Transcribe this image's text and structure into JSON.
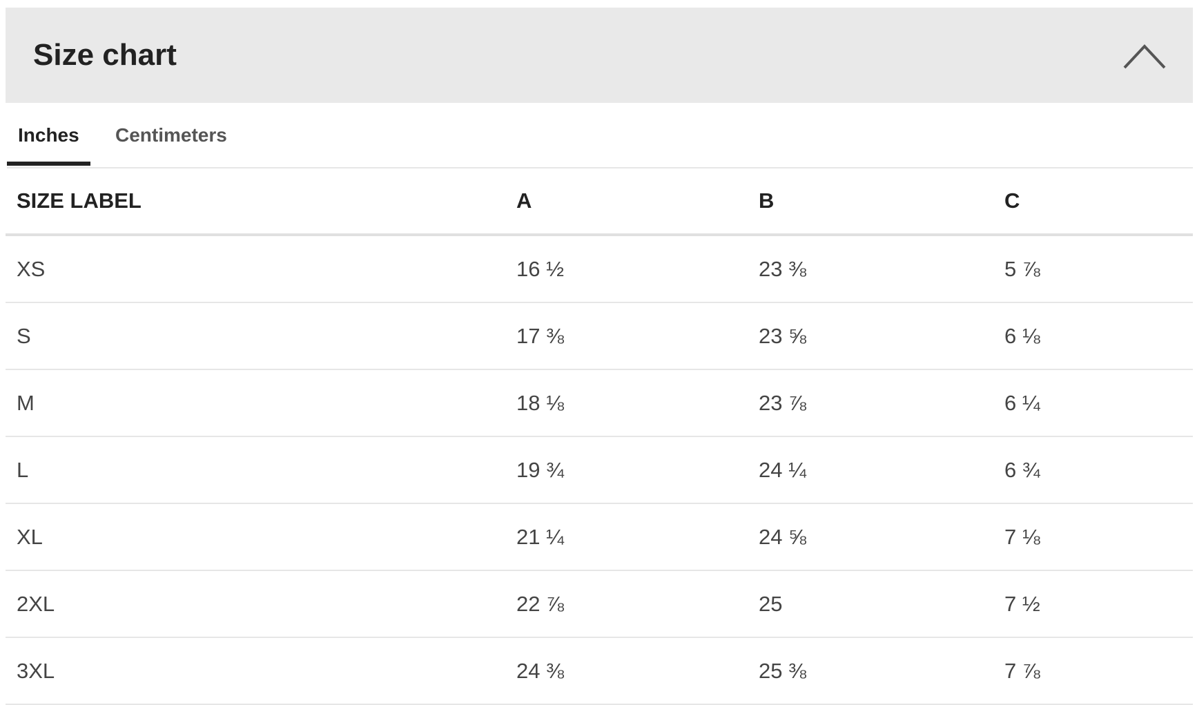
{
  "header": {
    "title": "Size chart"
  },
  "tabs": [
    "Inches",
    "Centimeters"
  ],
  "table": {
    "columns": [
      "SIZE LABEL",
      "A",
      "B",
      "C"
    ],
    "rows": [
      [
        "XS",
        "16 ½",
        "23 ⅜",
        "5 ⅞"
      ],
      [
        "S",
        "17 ⅜",
        "23 ⅝",
        "6 ⅛"
      ],
      [
        "M",
        "18 ⅛",
        "23 ⅞",
        "6 ¼"
      ],
      [
        "L",
        "19 ¾",
        "24 ¼",
        "6 ¾"
      ],
      [
        "XL",
        "21 ¼",
        "24 ⅝",
        "7 ⅛"
      ],
      [
        "2XL",
        "22 ⅞",
        "25",
        "7 ½"
      ],
      [
        "3XL",
        "24 ⅜",
        "25 ⅜",
        "7 ⅞"
      ]
    ]
  }
}
